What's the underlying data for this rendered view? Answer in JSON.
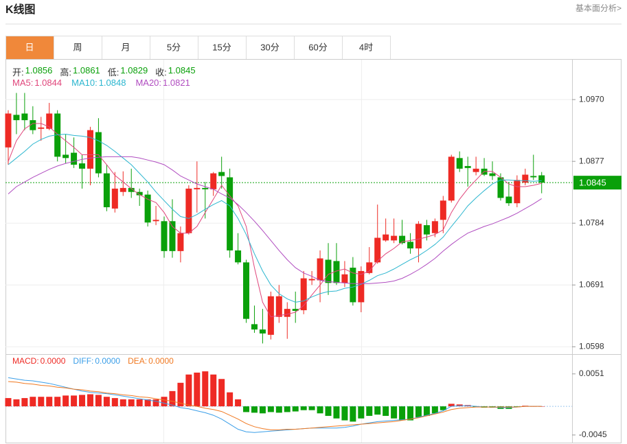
{
  "header": {
    "title": "K线图",
    "link": "基本面分析>"
  },
  "tabs": [
    "日",
    "周",
    "月",
    "5分",
    "15分",
    "30分",
    "60分",
    "4时"
  ],
  "chart_data": [
    {
      "type": "candlestick",
      "ohlc_labels": [
        "开:",
        "高:",
        "低:",
        "收:"
      ],
      "up_color": "#ee2a24",
      "down_color": "#0aa00a",
      "open": [
        1.0898,
        1.0947,
        1.0949,
        1.0939,
        1.0926,
        1.0926,
        1.0949,
        1.0887,
        1.089,
        1.0874,
        1.0866,
        1.0921,
        1.0859,
        1.0806,
        1.0831,
        1.0837,
        1.0831,
        1.0827,
        1.0787,
        1.0787,
        1.0787,
        1.0742,
        1.0769,
        1.0835,
        1.0837,
        1.0835,
        1.0861,
        1.0853,
        1.0743,
        1.0725,
        1.0632,
        1.0624,
        1.0616,
        1.0643,
        1.0643,
        1.0655,
        1.0653,
        1.0698,
        1.0698,
        1.0729,
        1.0727,
        1.0694,
        1.0717,
        1.0665,
        1.0709,
        1.0725,
        1.0758,
        1.0758,
        1.0765,
        1.0756,
        1.0746,
        1.0781,
        1.0769,
        1.0789,
        1.0818,
        1.0882,
        1.087,
        1.0861,
        1.0866,
        1.0859,
        1.0853,
        1.0824,
        1.0814,
        1.0845,
        1.0855,
        1.0856
      ],
      "high": [
        1.0954,
        1.098,
        1.098,
        1.096,
        1.0944,
        1.0965,
        1.0954,
        1.0918,
        1.0913,
        1.0887,
        1.0929,
        1.0942,
        1.0872,
        1.0861,
        1.0862,
        1.0866,
        1.0836,
        1.0833,
        1.081,
        1.0794,
        1.082,
        1.0779,
        1.0841,
        1.0877,
        1.0846,
        1.0861,
        1.0884,
        1.0866,
        1.0769,
        1.0729,
        1.066,
        1.0655,
        1.0681,
        1.0691,
        1.0665,
        1.0681,
        1.0712,
        1.0712,
        1.0743,
        1.0754,
        1.0754,
        1.0727,
        1.0733,
        1.0719,
        1.0748,
        1.0812,
        1.0791,
        1.0791,
        1.0789,
        1.0769,
        1.0787,
        1.0789,
        1.0791,
        1.0825,
        1.0887,
        1.0892,
        1.0884,
        1.0884,
        1.0882,
        1.0877,
        1.0859,
        1.0846,
        1.0856,
        1.0866,
        1.0887,
        1.0861
      ],
      "low": [
        1.0872,
        1.0918,
        1.0924,
        1.0918,
        1.0908,
        1.0924,
        1.0877,
        1.0874,
        1.0867,
        1.0836,
        1.0841,
        1.0853,
        1.0802,
        1.08,
        1.0825,
        1.0822,
        1.081,
        1.0779,
        1.0781,
        1.0732,
        1.0732,
        1.0725,
        1.0767,
        1.08,
        1.0791,
        1.0825,
        1.0836,
        1.0732,
        1.0722,
        1.0634,
        1.0619,
        1.0603,
        1.0609,
        1.0634,
        1.061,
        1.0634,
        1.0647,
        1.0691,
        1.0665,
        1.0676,
        1.0691,
        1.0688,
        1.066,
        1.065,
        1.0707,
        1.0723,
        1.0756,
        1.0754,
        1.0752,
        1.0738,
        1.0725,
        1.0758,
        1.0763,
        1.0769,
        1.0815,
        1.0861,
        1.0839,
        1.0856,
        1.0855,
        1.0849,
        1.0818,
        1.081,
        1.0808,
        1.0841,
        1.0849,
        1.0829
      ],
      "close": [
        1.0949,
        1.0939,
        1.0939,
        1.0924,
        1.0928,
        1.0949,
        1.0884,
        1.0882,
        1.0872,
        1.0866,
        1.0924,
        1.0859,
        1.0808,
        1.0836,
        1.0837,
        1.0831,
        1.0826,
        1.0785,
        1.0789,
        1.0742,
        1.0742,
        1.0769,
        1.0836,
        1.0837,
        1.0835,
        1.0859,
        1.0855,
        1.0743,
        1.0725,
        1.064,
        1.0624,
        1.0618,
        1.0674,
        1.0674,
        1.0655,
        1.0652,
        1.0701,
        1.07,
        1.0731,
        1.0694,
        1.0694,
        1.0707,
        1.0665,
        1.0712,
        1.0725,
        1.0762,
        1.0767,
        1.0765,
        1.0754,
        1.0746,
        1.0783,
        1.0767,
        1.0787,
        1.0818,
        1.0884,
        1.0866,
        1.0867,
        1.0866,
        1.0857,
        1.0855,
        1.0822,
        1.0814,
        1.0849,
        1.0857,
        1.0853,
        1.0845
      ],
      "series": [
        {
          "name": "MA5:",
          "color": "#e0457b",
          "values": [
            1.0877,
            1.0908,
            1.0926,
            1.0934,
            1.0934,
            1.0929,
            1.0918,
            1.0908,
            1.0898,
            1.0887,
            1.0887,
            1.0887,
            1.0872,
            1.0856,
            1.0846,
            1.0836,
            1.0827,
            1.082,
            1.0815,
            1.08,
            1.0779,
            1.0769,
            1.0769,
            1.0779,
            1.08,
            1.082,
            1.0841,
            1.0825,
            1.081,
            1.0779,
            1.0717,
            1.0665,
            1.0643,
            1.0645,
            1.0647,
            1.065,
            1.066,
            1.0676,
            1.0691,
            1.0707,
            1.0712,
            1.0715,
            1.0709,
            1.0707,
            1.0712,
            1.0727,
            1.0738,
            1.0746,
            1.0756,
            1.0758,
            1.076,
            1.0763,
            1.0767,
            1.0774,
            1.08,
            1.082,
            1.0836,
            1.0849,
            1.0862,
            1.0862,
            1.0853,
            1.0843,
            1.0839,
            1.0839,
            1.0841,
            1.0844
          ]
        },
        {
          "name": "MA10:",
          "color": "#2bb6cf",
          "values": [
            1.0872,
            1.0882,
            1.0892,
            1.0903,
            1.091,
            1.0915,
            1.0917,
            1.0918,
            1.0916,
            1.0915,
            1.0913,
            1.0908,
            1.0901,
            1.0892,
            1.0882,
            1.0872,
            1.0859,
            1.0846,
            1.0831,
            1.0818,
            1.0805,
            1.0794,
            1.0791,
            1.0797,
            1.0805,
            1.0812,
            1.0818,
            1.081,
            1.0791,
            1.0767,
            1.0738,
            1.0712,
            1.0691,
            1.0678,
            1.067,
            1.0665,
            1.0667,
            1.0673,
            1.0678,
            1.0681,
            1.0682,
            1.0686,
            1.0688,
            1.0692,
            1.0698,
            1.0705,
            1.0709,
            1.0715,
            1.0722,
            1.0729,
            1.0735,
            1.0743,
            1.0752,
            1.0763,
            1.0779,
            1.0794,
            1.081,
            1.0822,
            1.0833,
            1.0843,
            1.0849,
            1.0849,
            1.0848,
            1.0848,
            1.0847,
            1.0848
          ]
        },
        {
          "name": "MA20:",
          "color": "#b04cc0",
          "values": [
            1.0828,
            1.0839,
            1.0846,
            1.0853,
            1.0859,
            1.0865,
            1.087,
            1.0874,
            1.0877,
            1.088,
            1.0882,
            1.0883,
            1.0884,
            1.0884,
            1.0884,
            1.0884,
            1.0882,
            1.0879,
            1.0876,
            1.0872,
            1.0864,
            1.0855,
            1.0849,
            1.0843,
            1.0839,
            1.0835,
            1.0828,
            1.0822,
            1.0812,
            1.08,
            1.0787,
            1.0773,
            1.0758,
            1.0743,
            1.0729,
            1.0717,
            1.0709,
            1.0704,
            1.0698,
            1.0696,
            1.0695,
            1.0694,
            1.0693,
            1.0693,
            1.0693,
            1.0694,
            1.0695,
            1.0697,
            1.0701,
            1.0707,
            1.0714,
            1.0722,
            1.0731,
            1.0742,
            1.0752,
            1.0761,
            1.0769,
            1.0774,
            1.0779,
            1.0783,
            1.0788,
            1.0793,
            1.0799,
            1.0806,
            1.0813,
            1.0821
          ]
        }
      ],
      "ylim": [
        1.0588,
        1.103
      ],
      "yticks": [
        {
          "value": 1.097,
          "label": "1.0970"
        },
        1.0877,
        1.0784,
        1.0691,
        1.0598
      ],
      "last_price": 1.0845,
      "grid": true
    },
    {
      "type": "macd",
      "histogram": {
        "name": "MACD:",
        "current_label": "0.0000",
        "up_color": "#ee2a24",
        "down_color": "#0aa00a",
        "values": [
          0.0013,
          0.0011,
          0.0013,
          0.0015,
          0.0015,
          0.0015,
          0.0015,
          0.0017,
          0.0017,
          0.0018,
          0.0019,
          0.0018,
          0.0015,
          0.0013,
          0.0011,
          0.0011,
          0.0011,
          0.0011,
          0.0011,
          0.0015,
          0.0024,
          0.0037,
          0.005,
          0.0053,
          0.0055,
          0.005,
          0.0043,
          0.0022,
          0.0011,
          -0.0009,
          -0.001,
          -0.0011,
          -0.0009,
          -0.001,
          -0.0009,
          -0.0008,
          -0.0006,
          -0.0006,
          -0.0011,
          -0.0015,
          -0.0019,
          -0.0022,
          -0.0024,
          -0.0019,
          -0.0015,
          -0.0013,
          -0.0015,
          -0.0019,
          -0.0022,
          -0.0022,
          -0.0017,
          -0.0015,
          -0.0011,
          -0.0006,
          0.0004,
          0.0003,
          0.0002,
          -0.0001,
          -0.0002,
          -0.0002,
          -0.0004,
          -0.0004,
          -0.0001,
          0.0001,
          0,
          0
        ]
      },
      "series": [
        {
          "name": "DIFF:",
          "current_label": "0.0000",
          "color": "#3a9ee8",
          "values": [
            0.0045,
            0.0043,
            0.0041,
            0.004,
            0.0038,
            0.0036,
            0.0033,
            0.003,
            0.0027,
            0.0024,
            0.0022,
            0.0021,
            0.002,
            0.0018,
            0.0016,
            0.0014,
            0.0012,
            0.001,
            0.0008,
            0.0005,
            0.0002,
            -0.0002,
            -0.0004,
            -0.0007,
            -0.001,
            -0.0014,
            -0.002,
            -0.0028,
            -0.0036,
            -0.004,
            -0.0041,
            -0.004,
            -0.0039,
            -0.0038,
            -0.0037,
            -0.0036,
            -0.0035,
            -0.0034,
            -0.0034,
            -0.0034,
            -0.0034,
            -0.0033,
            -0.0031,
            -0.0028,
            -0.0026,
            -0.0024,
            -0.0023,
            -0.0022,
            -0.0021,
            -0.002,
            -0.0017,
            -0.0014,
            -0.0011,
            -0.0007,
            0,
            0.0001,
            0.0001,
            0,
            -0.0001,
            -0.0001,
            -0.0002,
            -0.0002,
            -0.0001,
            0,
            0,
            0
          ]
        },
        {
          "name": "DEA:",
          "current_label": "0.0000",
          "color": "#f07820",
          "values": [
            0.0039,
            0.0038,
            0.0036,
            0.0035,
            0.0033,
            0.0032,
            0.003,
            0.0029,
            0.0027,
            0.0026,
            0.0024,
            0.0023,
            0.0021,
            0.002,
            0.0018,
            0.0017,
            0.0015,
            0.0014,
            0.0012,
            0.001,
            0.0008,
            0.0005,
            0.0002,
            0,
            -0.0003,
            -0.0005,
            -0.0008,
            -0.0014,
            -0.002,
            -0.0027,
            -0.0032,
            -0.0035,
            -0.0037,
            -0.0037,
            -0.0036,
            -0.0036,
            -0.0035,
            -0.0034,
            -0.0033,
            -0.0032,
            -0.0031,
            -0.003,
            -0.0029,
            -0.0028,
            -0.0027,
            -0.0026,
            -0.0025,
            -0.0024,
            -0.0022,
            -0.002,
            -0.0018,
            -0.0015,
            -0.0012,
            -0.0009,
            -0.0005,
            -0.0003,
            -0.0002,
            -0.0001,
            -0.0001,
            -0.0001,
            -0.0001,
            -0.0001,
            -0.0001,
            0,
            0,
            0
          ]
        }
      ],
      "ylim": [
        -0.0057,
        0.0081
      ],
      "yticks": [
        0.0051,
        -0.0045
      ]
    }
  ]
}
